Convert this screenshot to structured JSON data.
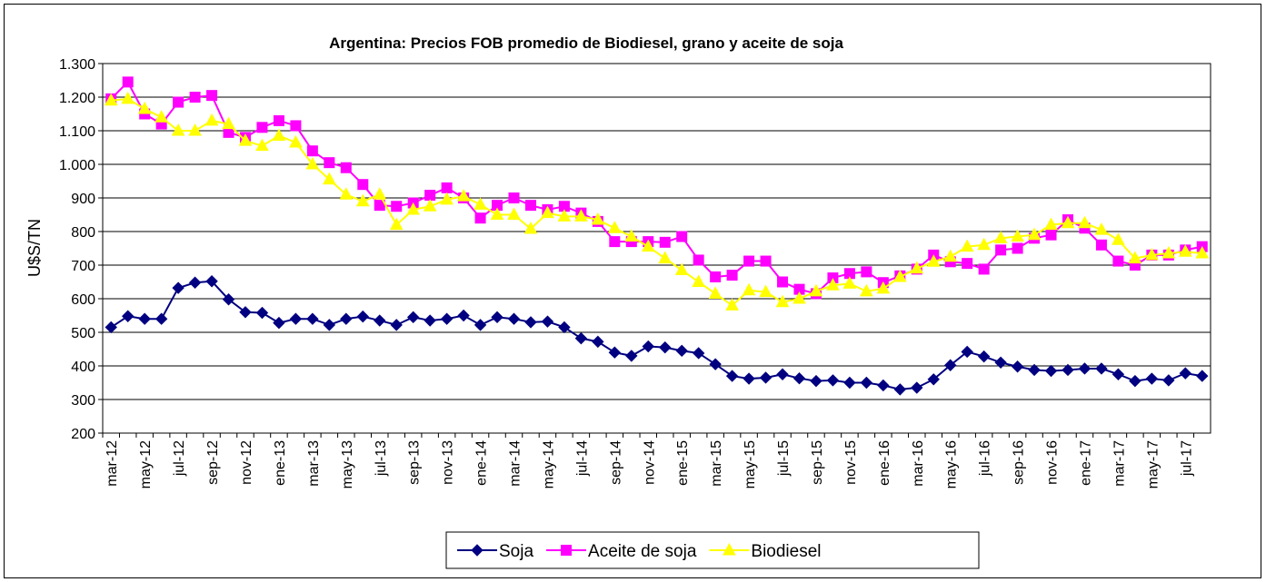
{
  "chart_data": {
    "type": "line",
    "title": "Argentina: Precios FOB promedio de Biodiesel, grano y aceite de soja",
    "y_label": "U$S/TN",
    "categories": [
      "mar-12",
      null,
      "may-12",
      null,
      "jul-12",
      null,
      "sep-12",
      null,
      "nov-12",
      null,
      "ene-13",
      null,
      "mar-13",
      null,
      "may-13",
      null,
      "jul-13",
      null,
      "sep-13",
      null,
      "nov-13",
      null,
      "ene-14",
      null,
      "mar-14",
      null,
      "may-14",
      null,
      "jul-14",
      null,
      "sep-14",
      null,
      "nov-14",
      null,
      "ene-15",
      null,
      "mar-15",
      null,
      "may-15",
      null,
      "jul-15",
      null,
      "sep-15",
      null,
      "nov-15",
      null,
      "ene-16",
      null,
      "mar-16",
      null,
      "may-16",
      null,
      "jul-16",
      null,
      "sep-16",
      null,
      "nov-16",
      null,
      "ene-17",
      null,
      "mar-17",
      null,
      "may-17",
      null,
      "jul-17",
      null
    ],
    "ylim": [
      200,
      1300
    ],
    "yticks": [
      200,
      300,
      400,
      500,
      600,
      700,
      800,
      900,
      {
        "value": 1000,
        "label": "1.000"
      },
      {
        "value": 1100,
        "label": "1.100"
      },
      {
        "value": 1200,
        "label": "1.200"
      },
      {
        "value": 1300,
        "label": "1.300"
      }
    ],
    "grid": true,
    "legend": "bottom",
    "series": [
      {
        "name": "Soja",
        "color": "#000080",
        "marker": "diamond",
        "values": [
          515,
          548,
          540,
          540,
          632,
          648,
          652,
          598,
          560,
          558,
          528,
          540,
          540,
          522,
          540,
          547,
          535,
          522,
          545,
          535,
          540,
          550,
          522,
          545,
          540,
          530,
          532,
          515,
          482,
          472,
          440,
          430,
          458,
          455,
          445,
          438,
          405,
          370,
          362,
          365,
          375,
          363,
          355,
          357,
          350,
          350,
          342,
          330,
          335,
          360,
          402,
          442,
          428,
          410,
          398,
          388,
          385,
          388,
          392,
          392,
          375,
          355,
          362,
          357,
          378,
          370
        ]
      },
      {
        "name": "Aceite de soja",
        "color": "#ff00ff",
        "marker": "square",
        "values": [
          1195,
          1245,
          1150,
          1120,
          1185,
          1200,
          1205,
          1095,
          1080,
          1110,
          1130,
          1115,
          1040,
          1005,
          990,
          940,
          878,
          875,
          885,
          908,
          930,
          900,
          840,
          878,
          900,
          878,
          865,
          875,
          855,
          830,
          770,
          770,
          770,
          768,
          785,
          715,
          665,
          670,
          712,
          712,
          650,
          628,
          615,
          662,
          675,
          680,
          648,
          668,
          688,
          730,
          710,
          705,
          688,
          745,
          750,
          780,
          790,
          835,
          810,
          760,
          712,
          700,
          730,
          730,
          745,
          755
        ]
      },
      {
        "name": "Biodiesel",
        "color": "#ffff00",
        "marker": "triangle",
        "values": [
          1190,
          1195,
          1165,
          1140,
          1100,
          1100,
          1130,
          1120,
          1070,
          1055,
          1085,
          1065,
          1000,
          955,
          910,
          890,
          910,
          820,
          865,
          875,
          895,
          905,
          880,
          850,
          850,
          808,
          855,
          845,
          845,
          835,
          810,
          785,
          755,
          720,
          685,
          650,
          615,
          580,
          625,
          620,
          590,
          600,
          622,
          640,
          645,
          622,
          630,
          665,
          690,
          710,
          725,
          755,
          760,
          780,
          785,
          790,
          820,
          825,
          825,
          805,
          775,
          720,
          730,
          735,
          740,
          735
        ]
      }
    ]
  }
}
